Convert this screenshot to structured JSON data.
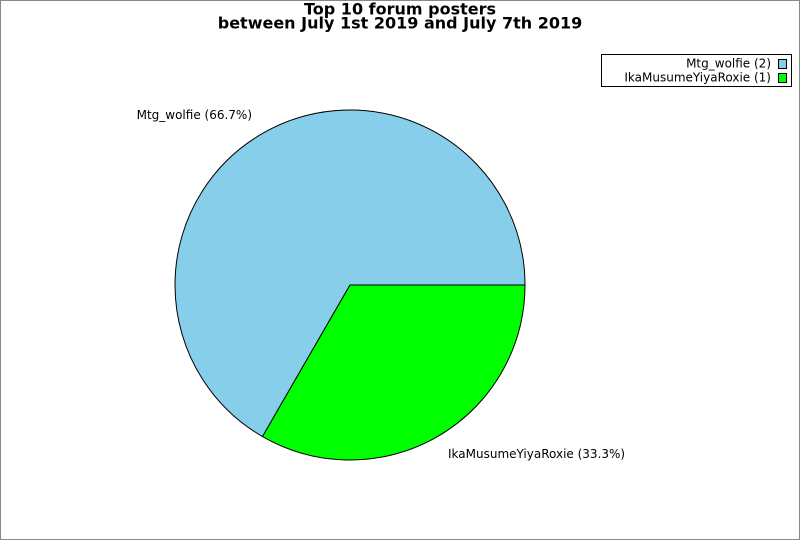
{
  "chart_data": {
    "type": "pie",
    "title": [
      "Top 10 forum posters",
      "between July 1st 2019 and July 7th 2019"
    ],
    "categories": [
      "Mtg_wolfie",
      "IkaMusumeYiyaRoxie"
    ],
    "values": [
      2,
      1
    ],
    "colors": [
      "#87ceeb",
      "#00ff00"
    ],
    "slice_labels": [
      "Mtg_wolfie (66.7%)",
      "IkaMusumeYiyaRoxie (33.3%)"
    ],
    "legend_labels": [
      "Mtg_wolfie (2)",
      "IkaMusumeYiyaRoxie (1)"
    ],
    "legend": "upper right"
  }
}
